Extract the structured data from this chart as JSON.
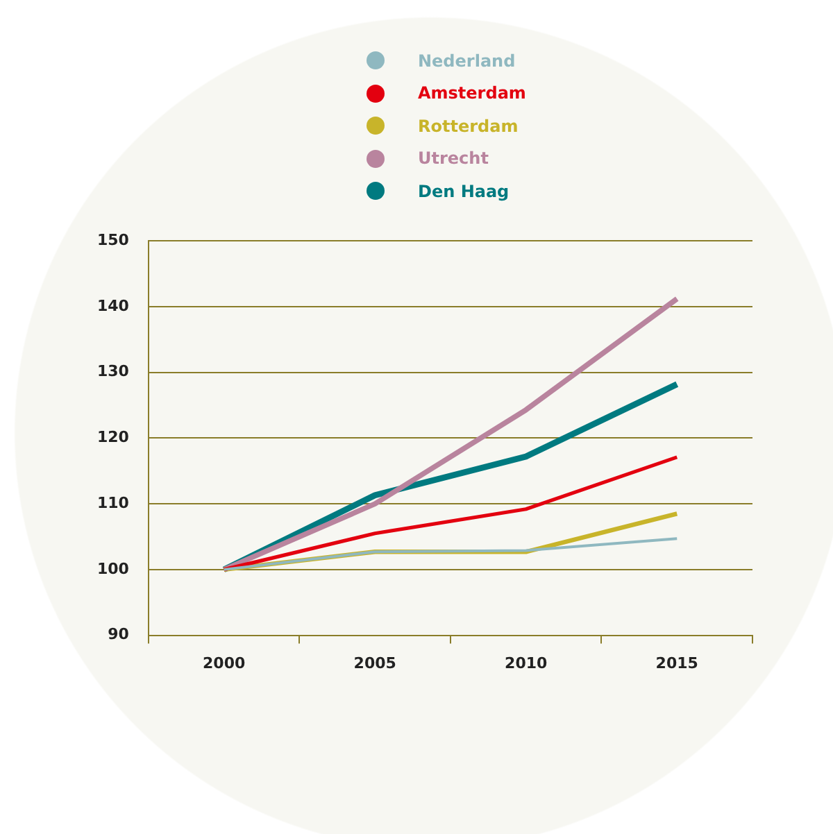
{
  "chart_data": {
    "type": "line",
    "categories": [
      "2000",
      "2005",
      "2010",
      "2015"
    ],
    "series": [
      {
        "name": "Nederland",
        "color": "#8fb8c0",
        "values": [
          100,
          102.7,
          102.9,
          104.7
        ]
      },
      {
        "name": "Amsterdam",
        "color": "#e3000f",
        "values": [
          100,
          105.5,
          109.2,
          117.1
        ]
      },
      {
        "name": "Rotterdam",
        "color": "#c8b42a",
        "values": [
          100,
          102.7,
          102.7,
          108.5
        ]
      },
      {
        "name": "Utrecht",
        "color": "#b9849e",
        "values": [
          100,
          110,
          124.3,
          141.2
        ]
      },
      {
        "name": "Den Haag",
        "color": "#007a80",
        "values": [
          100,
          111.3,
          117.2,
          128.2
        ]
      }
    ],
    "ylim": [
      90,
      150
    ],
    "yticks": [
      90,
      100,
      110,
      120,
      130,
      140,
      150
    ],
    "grid": "y",
    "legend": "top",
    "marker": "none",
    "line_style": "solid"
  }
}
